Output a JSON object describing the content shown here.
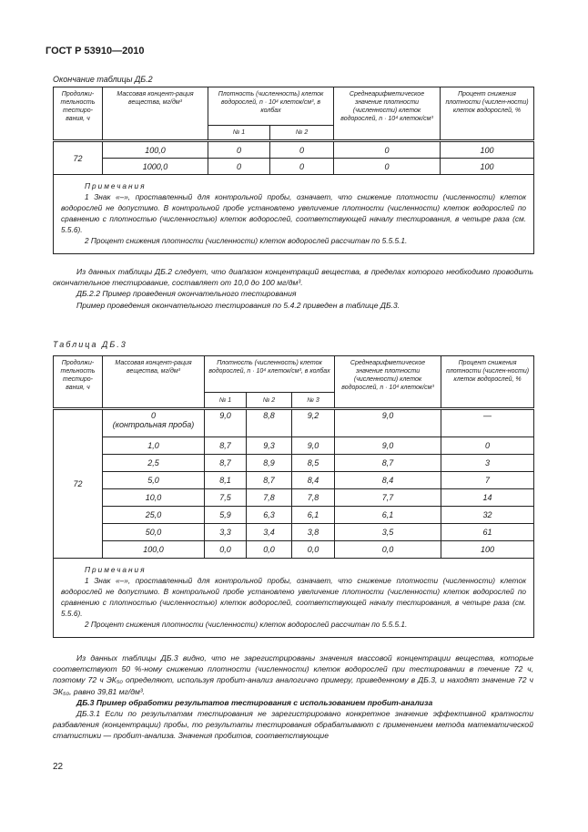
{
  "header": {
    "doc_code": "ГОСТ Р 53910—2010"
  },
  "table2": {
    "caption": "Окончание таблицы ДБ.2",
    "headers": {
      "duration": "Продолжи-тельность тестиро-вания, ч",
      "conc": "Массовая концент-рация вещества, мг/дм³",
      "density": "Плотность (численность) клеток водорослей, n · 10⁴ клеток/см³, в колбах",
      "flasks": [
        "№ 1",
        "№ 2"
      ],
      "mean": "Среднеарифметическое значение плотности (численности) клеток водорослей, n · 10⁴ клеток/см³",
      "percent": "Процент снижения плотности (числен-ности) клеток водорослей, %"
    },
    "duration_value": "72",
    "rows": [
      {
        "conc": "100,0",
        "f1": "0",
        "f2": "0",
        "mean": "0",
        "percent": "100"
      },
      {
        "conc": "1000,0",
        "f1": "0",
        "f2": "0",
        "mean": "0",
        "percent": "100"
      }
    ],
    "notes_title": "Примечания",
    "notes": [
      "1 Знак «–», проставленный для контрольной пробы, означает, что снижение плотности (численности) клеток водорослей не допустимо. В контрольной пробе установлено увеличение плотности (численности) клеток водорослей по сравнению с плотностью (численностью) клеток водорослей, соответствующей началу тестирования, в четыре раза (см. 5.5.6).",
      "2 Процент снижения плотности (численности) клеток водорослей рассчитан по 5.5.5.1."
    ]
  },
  "text1": {
    "p1": "Из данных таблицы ДБ.2 следует, что диапазон концентраций вещества, в пределах которого необходимо проводить окончательное тестирование, составляет от 10,0 до 100 мг/дм³.",
    "p2": "ДБ.2.2 Пример проведения окончательного тестирования",
    "p3": "Пример проведения окончательного тестирования по 5.4.2 приведен в таблице ДБ.3."
  },
  "table3": {
    "caption": "Таблица ДБ.3",
    "headers": {
      "duration": "Продолжи-тельность тестиро-вания, ч",
      "conc": "Массовая концент-рация вещества, мг/дм³",
      "density": "Плотность (численность) клеток водорослей, n · 10⁴ клеток/см³, в колбах",
      "flasks": [
        "№ 1",
        "№ 2",
        "№ 3"
      ],
      "mean": "Среднеарифметическое значение плотности (численности) клеток водорослей, n · 10⁴ клеток/см³",
      "percent": "Процент снижения плотности (числен-ности) клеток водорослей, %"
    },
    "duration_value": "72",
    "rows": [
      {
        "conc": "0",
        "conc_note": "(контрольная проба)",
        "f1": "9,0",
        "f2": "8,8",
        "f3": "9,2",
        "mean": "9,0",
        "percent": "—"
      },
      {
        "conc": "1,0",
        "f1": "8,7",
        "f2": "9,3",
        "f3": "9,0",
        "mean": "9,0",
        "percent": "0"
      },
      {
        "conc": "2,5",
        "f1": "8,7",
        "f2": "8,9",
        "f3": "8,5",
        "mean": "8,7",
        "percent": "3"
      },
      {
        "conc": "5,0",
        "f1": "8,1",
        "f2": "8,7",
        "f3": "8,4",
        "mean": "8,4",
        "percent": "7"
      },
      {
        "conc": "10,0",
        "f1": "7,5",
        "f2": "7,8",
        "f3": "7,8",
        "mean": "7,7",
        "percent": "14"
      },
      {
        "conc": "25,0",
        "f1": "5,9",
        "f2": "6,3",
        "f3": "6,1",
        "mean": "6,1",
        "percent": "32"
      },
      {
        "conc": "50,0",
        "f1": "3,3",
        "f2": "3,4",
        "f3": "3,8",
        "mean": "3,5",
        "percent": "61"
      },
      {
        "conc": "100,0",
        "f1": "0,0",
        "f2": "0,0",
        "f3": "0,0",
        "mean": "0,0",
        "percent": "100"
      }
    ],
    "notes_title": "Примечания",
    "notes": [
      "1 Знак «–», проставленный для контрольной пробы, означает, что снижение плотности (численности) клеток водорослей не допустимо. В контрольной пробе установлено увеличение плотности (численности) клеток водорослей по сравнению с плотностью (численностью) клеток водорослей, соответствующей началу тестирования, в четыре раза (см. 5.5.6).",
      "2 Процент снижения плотности (численности) клеток водорослей рассчитан по 5.5.5.1."
    ]
  },
  "text2": {
    "p1": "Из данных таблицы ДБ.3 видно, что не зарегистрированы значения массовой концентрации вещества, которые соответствуют 50 %-ному снижению плотности (численности) клеток водорослей при тестировании в течение 72 ч, поэтому 72 ч ЭК₅₀ определяют, используя пробит-анализ аналогично примеру, приведенному в ДБ.3, и находят значение 72 ч ЭК₅₀, равно 39,81 мг/дм³.",
    "heading": "ДБ.3 Пример обработки результатов тестирования с использованием пробит-анализа",
    "p2": "ДБ.3.1 Если по результатам тестирования не зарегистрировано конкретное значение эффективной кратности разбавления (концентрации) пробы, то результаты тестирования обрабатывают с применением метода математической статистики — пробит-анализа. Значения пробитов, соответствующие"
  },
  "footer": {
    "page_number": "22"
  }
}
